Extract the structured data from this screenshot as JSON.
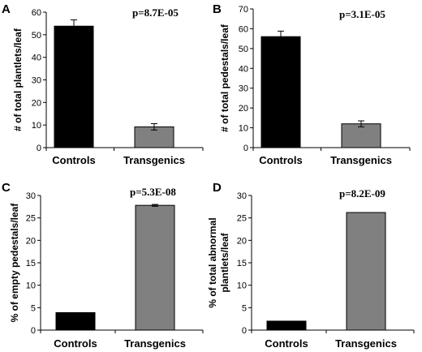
{
  "colors": {
    "controls": "#000000",
    "transgenics": "#808080",
    "axis": "#000000"
  },
  "chart_data": [
    {
      "panel": "A",
      "type": "bar",
      "categories": [
        "Controls",
        "Transgenics"
      ],
      "values": [
        53.8,
        9.2
      ],
      "errors": [
        2.8,
        1.4
      ],
      "annotation": "p=8.7E-05",
      "ylabel": "# of total plantlets/leaf",
      "ylim": [
        0,
        60
      ],
      "yticks": [
        0,
        10,
        20,
        30,
        40,
        50,
        60
      ]
    },
    {
      "panel": "B",
      "type": "bar",
      "categories": [
        "Controls",
        "Transgenics"
      ],
      "values": [
        56.0,
        12.0
      ],
      "errors": [
        2.8,
        1.5
      ],
      "annotation": "p=3.1E-05",
      "ylabel": "# of total pedestals/leaf",
      "ylim": [
        0,
        70
      ],
      "yticks": [
        0,
        10,
        20,
        30,
        40,
        50,
        60,
        70
      ]
    },
    {
      "panel": "C",
      "type": "bar",
      "categories": [
        "Controls",
        "Transgenics"
      ],
      "values": [
        3.9,
        27.8
      ],
      "errors": [
        0,
        0.2
      ],
      "annotation": "p=5.3E-08",
      "ylabel": "% of empty pedestals/leaf",
      "ylim": [
        0,
        30
      ],
      "yticks": [
        0,
        5,
        10,
        15,
        20,
        25,
        30
      ]
    },
    {
      "panel": "D",
      "type": "bar",
      "categories": [
        "Controls",
        "Transgenics"
      ],
      "values": [
        2.0,
        26.2
      ],
      "errors": [
        0,
        0
      ],
      "annotation": "p=8.2E-09",
      "ylabel": "% of total abnormal plantlets/leaf",
      "ylabel_lines": [
        "% of total abnormal",
        "plantlets/leaf"
      ],
      "ylim": [
        0,
        30
      ],
      "yticks": [
        0,
        5,
        10,
        15,
        20,
        25,
        30
      ]
    }
  ]
}
